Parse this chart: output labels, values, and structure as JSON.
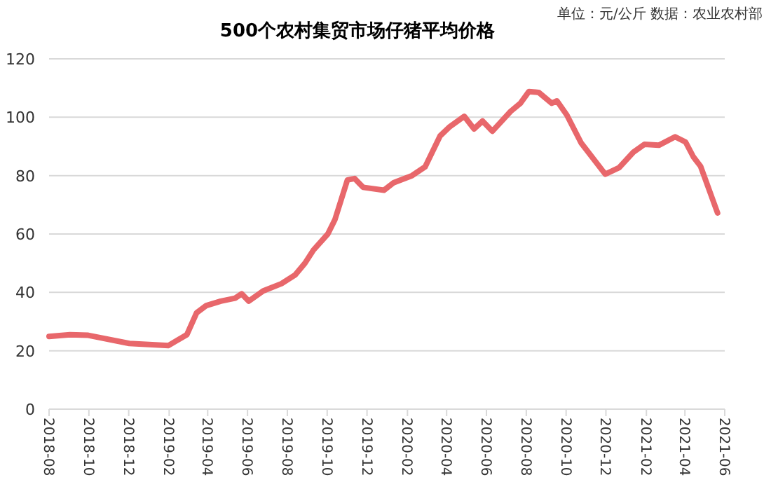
{
  "chart_data": {
    "type": "line",
    "title": "500个农村集贸市场仔猪平均价格",
    "annotations": [
      "单位：元/公斤  数据：农业农村部"
    ],
    "x": [
      "2018-08-01",
      "2018-09-02",
      "2018-09-30",
      "2018-12-02",
      "2019-01-31",
      "2019-02-28",
      "2019-03-15",
      "2019-03-30",
      "2019-04-21",
      "2019-05-13",
      "2019-05-23",
      "2019-06-03",
      "2019-06-25",
      "2019-07-23",
      "2019-08-13",
      "2019-08-28",
      "2019-09-10",
      "2019-10-02",
      "2019-10-13",
      "2019-11-01",
      "2019-11-12",
      "2019-11-25",
      "2019-12-27",
      "2020-01-11",
      "2020-02-08",
      "2020-02-28",
      "2020-03-22",
      "2020-04-06",
      "2020-04-28",
      "2020-05-13",
      "2020-05-26",
      "2020-06-10",
      "2020-07-08",
      "2020-07-23",
      "2020-08-05",
      "2020-08-20",
      "2020-09-09",
      "2020-09-17",
      "2020-10-02",
      "2020-10-24",
      "2020-11-30",
      "2020-12-21",
      "2021-01-12",
      "2021-01-29",
      "2021-02-20",
      "2021-03-17",
      "2021-04-02",
      "2021-04-14",
      "2021-04-25",
      "2021-05-21"
    ],
    "series": [
      {
        "color": "#e8676b",
        "values": [
          24.9,
          25.5,
          25.3,
          22.5,
          21.8,
          25.5,
          33,
          35.5,
          37,
          38,
          39.5,
          37,
          40.5,
          43,
          46,
          50,
          54.5,
          60,
          65,
          78.5,
          79,
          76,
          75,
          77.6,
          80,
          83,
          93.6,
          96.8,
          100.3,
          96,
          98.7,
          95.2,
          102,
          104.8,
          108.8,
          108.5,
          104.8,
          105.6,
          100.8,
          91.2,
          80.5,
          82.7,
          88,
          90.7,
          90.4,
          93.3,
          91.5,
          86.4,
          83.2,
          67.2
        ]
      }
    ],
    "xlim": [
      "2018-08",
      "2021-06"
    ],
    "xticks": [
      "2018-08",
      "2018-10",
      "2018-12",
      "2019-02",
      "2019-04",
      "2019-06",
      "2019-08",
      "2019-10",
      "2019-12",
      "2020-02",
      "2020-04",
      "2020-06",
      "2020-08",
      "2020-10",
      "2020-12",
      "2021-02",
      "2021-04",
      "2021-06"
    ],
    "ylim": [
      0,
      120
    ],
    "yticks": [
      0,
      20,
      40,
      60,
      80,
      100,
      120
    ],
    "grid": "y",
    "line_style": "solid",
    "marker": "none"
  }
}
